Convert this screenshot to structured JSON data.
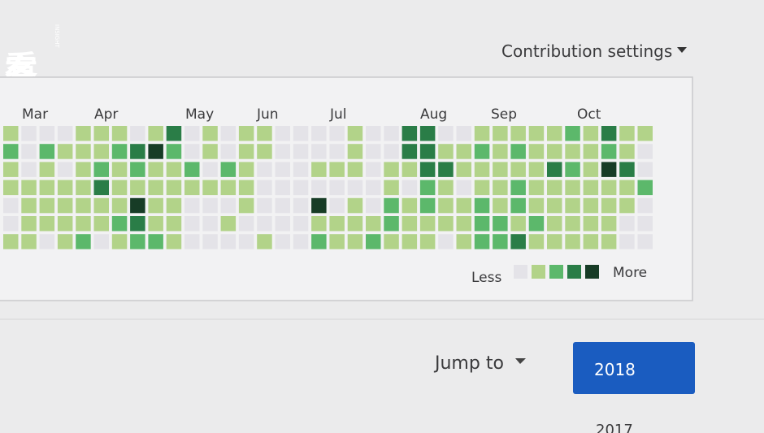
{
  "watermark": {
    "title": "看客",
    "subtitle": "INSIGHT"
  },
  "settings_label": "Contribution settings",
  "months": [
    "Mar",
    "Apr",
    "May",
    "Jun",
    "Jul",
    "Aug",
    "Sep",
    "Oct"
  ],
  "levels": [
    [
      1,
      0,
      0,
      0,
      1,
      1,
      1,
      0,
      1,
      3,
      0,
      1,
      0,
      1,
      1,
      0,
      0,
      0,
      0,
      1,
      0,
      0,
      3,
      3,
      0,
      0,
      1,
      1,
      1,
      1,
      1,
      2,
      1,
      3,
      1,
      1
    ],
    [
      2,
      0,
      2,
      1,
      1,
      1,
      2,
      3,
      4,
      2,
      0,
      1,
      0,
      1,
      1,
      0,
      0,
      0,
      0,
      1,
      0,
      0,
      3,
      3,
      1,
      1,
      2,
      1,
      2,
      1,
      1,
      1,
      1,
      2,
      1,
      0
    ],
    [
      1,
      0,
      1,
      0,
      1,
      2,
      1,
      2,
      1,
      1,
      2,
      0,
      2,
      1,
      0,
      0,
      0,
      1,
      1,
      1,
      0,
      1,
      1,
      3,
      3,
      1,
      1,
      1,
      1,
      1,
      3,
      2,
      1,
      4,
      3,
      0
    ],
    [
      1,
      1,
      1,
      1,
      1,
      3,
      1,
      1,
      1,
      1,
      1,
      1,
      1,
      1,
      0,
      0,
      0,
      0,
      0,
      0,
      0,
      1,
      0,
      2,
      1,
      0,
      1,
      1,
      2,
      1,
      1,
      1,
      1,
      1,
      1,
      2
    ],
    [
      0,
      1,
      1,
      1,
      1,
      1,
      1,
      4,
      1,
      1,
      0,
      0,
      0,
      1,
      0,
      0,
      0,
      4,
      0,
      1,
      0,
      2,
      1,
      2,
      1,
      1,
      2,
      1,
      2,
      1,
      1,
      1,
      1,
      1,
      1,
      0
    ],
    [
      0,
      1,
      1,
      1,
      1,
      1,
      2,
      3,
      1,
      1,
      0,
      0,
      1,
      0,
      0,
      0,
      0,
      1,
      1,
      1,
      1,
      2,
      1,
      1,
      1,
      1,
      2,
      2,
      1,
      2,
      1,
      1,
      1,
      1,
      0,
      0
    ],
    [
      1,
      1,
      0,
      1,
      2,
      0,
      1,
      2,
      2,
      1,
      0,
      0,
      0,
      0,
      1,
      0,
      0,
      2,
      1,
      1,
      2,
      1,
      1,
      1,
      0,
      1,
      2,
      2,
      3,
      1,
      1,
      1,
      1,
      1,
      0,
      0
    ]
  ],
  "legend": {
    "less": "Less",
    "more": "More",
    "levels": [
      0,
      1,
      2,
      3,
      4
    ],
    "colors": [
      "#e4e3e8",
      "#b2d389",
      "#5cb86b",
      "#2a7d47",
      "#173c26"
    ]
  },
  "jump_label": "Jump to",
  "years": [
    "2018",
    "2017"
  ]
}
